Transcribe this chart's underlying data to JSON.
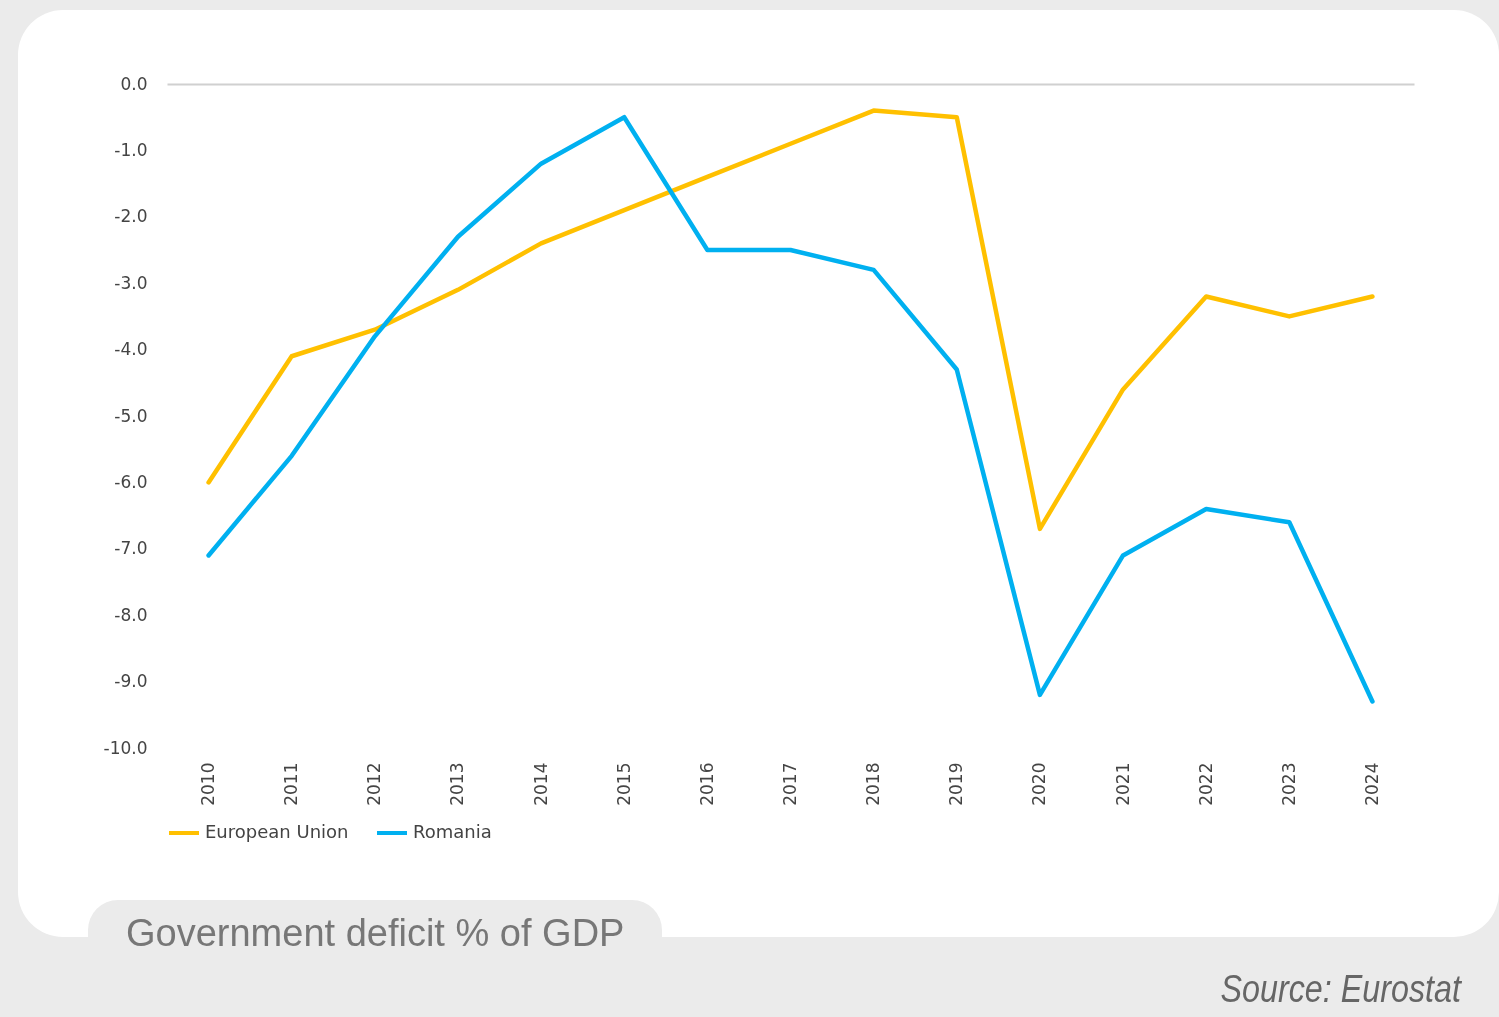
{
  "chart_data": {
    "type": "line",
    "title": "Government deficit % of GDP",
    "categories": [
      "2010",
      "2011",
      "2012",
      "2013",
      "2014",
      "2015",
      "2016",
      "2017",
      "2018",
      "2019",
      "2020",
      "2021",
      "2022",
      "2023",
      "2024"
    ],
    "series": [
      {
        "name": "European Union",
        "color": "#ffc000",
        "values": [
          -6.0,
          -4.1,
          -3.7,
          -3.1,
          -2.4,
          -1.9,
          -1.4,
          -0.9,
          -0.4,
          -0.5,
          -6.7,
          -4.6,
          -3.2,
          -3.5,
          -3.2
        ]
      },
      {
        "name": "Romania",
        "color": "#00b0f0",
        "values": [
          -7.1,
          -5.6,
          -3.8,
          -2.3,
          -1.2,
          -0.5,
          -2.5,
          -2.5,
          -2.8,
          -4.3,
          -9.2,
          -7.1,
          -6.4,
          -6.6,
          -9.3
        ]
      }
    ],
    "ylim": [
      -10,
      0
    ],
    "yticks": [
      {
        "value": 0,
        "label": "0.0"
      },
      {
        "value": -1,
        "label": "-1.0"
      },
      {
        "value": -2,
        "label": "-2.0"
      },
      {
        "value": -3,
        "label": "-3.0"
      },
      {
        "value": -4,
        "label": "-4.0"
      },
      {
        "value": -5,
        "label": "-5.0"
      },
      {
        "value": -6,
        "label": "-6.0"
      },
      {
        "value": -7,
        "label": "-7.0"
      },
      {
        "value": -8,
        "label": "-8.0"
      },
      {
        "value": -9,
        "label": "-9.0"
      },
      {
        "value": -10,
        "label": "-10.0"
      }
    ],
    "grid": false,
    "legend": "bottom",
    "marker": "none",
    "line_style": "solid",
    "annotations": [
      "Source: Eurostat"
    ]
  }
}
